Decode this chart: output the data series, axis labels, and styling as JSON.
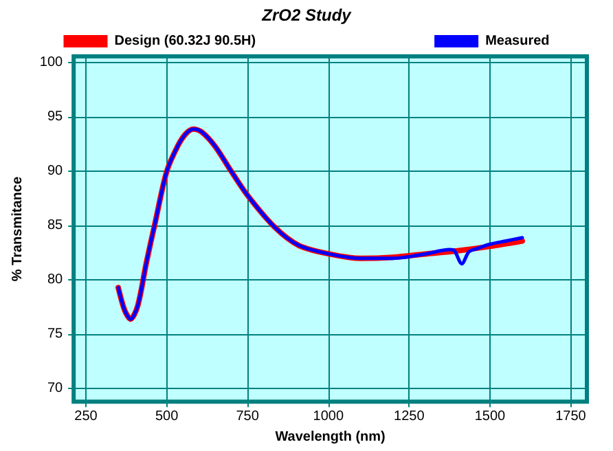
{
  "chart_data": {
    "type": "line",
    "title": "ZrO2 Study",
    "xlabel": "Wavelength (nm)",
    "ylabel": "% Transmitance",
    "xlim": [
      212,
      1800
    ],
    "ylim": [
      68.8,
      100.6
    ],
    "xticks": [
      250,
      500,
      750,
      1000,
      1250,
      1500,
      1750
    ],
    "yticks": [
      70,
      75,
      80,
      85,
      90,
      95,
      100
    ],
    "grid": true,
    "legend": "top",
    "marker": "none",
    "line_style": "solid",
    "series": [
      {
        "name": "Design (60.32J 90.5H)",
        "color": "#ff0000",
        "x": [
          350,
          370,
          388,
          410,
          437,
          465,
          500,
          535,
          560,
          583,
          610,
          650,
          700,
          750,
          833,
          908,
          1003,
          1100,
          1200,
          1300,
          1400,
          1500,
          1600
        ],
        "values": [
          79.3,
          77.2,
          76.4,
          77.6,
          81.6,
          85.4,
          90.0,
          92.4,
          93.5,
          93.9,
          93.6,
          92.3,
          90.0,
          87.8,
          84.9,
          83.2,
          82.4,
          82.0,
          82.1,
          82.4,
          82.7,
          83.1,
          83.6
        ]
      },
      {
        "name": "Measured",
        "color": "#0000ff",
        "x": [
          350,
          370,
          388,
          410,
          437,
          465,
          500,
          535,
          560,
          583,
          610,
          650,
          700,
          750,
          833,
          908,
          1003,
          1100,
          1200,
          1300,
          1375,
          1390,
          1413,
          1435,
          1460,
          1500,
          1550,
          1600
        ],
        "values": [
          79.3,
          77.2,
          76.4,
          77.6,
          81.6,
          85.4,
          90.0,
          92.4,
          93.5,
          93.9,
          93.6,
          92.3,
          90.0,
          87.8,
          84.9,
          83.2,
          82.4,
          82.0,
          82.0,
          82.4,
          82.8,
          82.7,
          81.5,
          82.6,
          82.9,
          83.3,
          83.6,
          83.9
        ]
      }
    ]
  }
}
